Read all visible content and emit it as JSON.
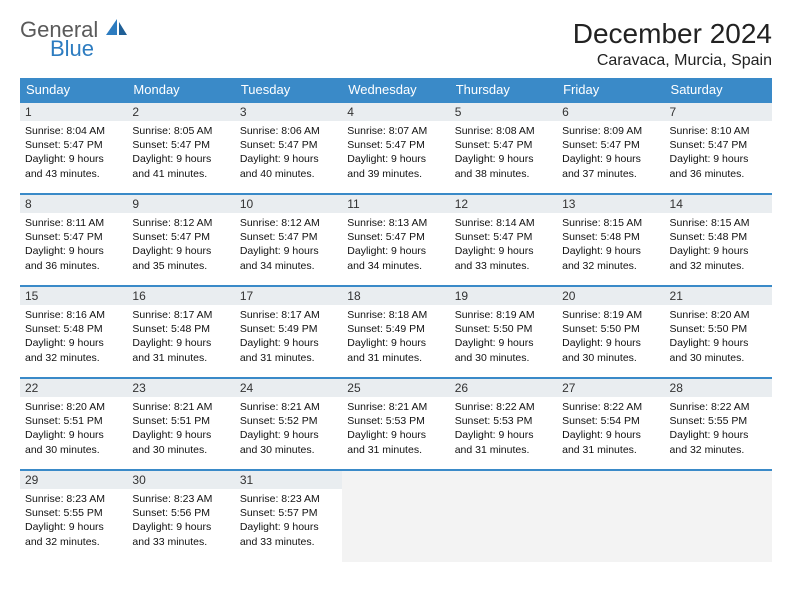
{
  "brand": {
    "general": "General",
    "blue": "Blue"
  },
  "title": "December 2024",
  "location": "Caravaca, Murcia, Spain",
  "colors": {
    "header_bg": "#3a8ac8",
    "header_text": "#ffffff",
    "daynum_bg": "#e9edf0",
    "row_border": "#3a8ac8",
    "logo_gray": "#5a5a5a",
    "logo_blue": "#2d7cc0"
  },
  "weekdays": [
    "Sunday",
    "Monday",
    "Tuesday",
    "Wednesday",
    "Thursday",
    "Friday",
    "Saturday"
  ],
  "days": [
    {
      "n": "1",
      "sr": "8:04 AM",
      "ss": "5:47 PM",
      "dl": "9 hours and 43 minutes."
    },
    {
      "n": "2",
      "sr": "8:05 AM",
      "ss": "5:47 PM",
      "dl": "9 hours and 41 minutes."
    },
    {
      "n": "3",
      "sr": "8:06 AM",
      "ss": "5:47 PM",
      "dl": "9 hours and 40 minutes."
    },
    {
      "n": "4",
      "sr": "8:07 AM",
      "ss": "5:47 PM",
      "dl": "9 hours and 39 minutes."
    },
    {
      "n": "5",
      "sr": "8:08 AM",
      "ss": "5:47 PM",
      "dl": "9 hours and 38 minutes."
    },
    {
      "n": "6",
      "sr": "8:09 AM",
      "ss": "5:47 PM",
      "dl": "9 hours and 37 minutes."
    },
    {
      "n": "7",
      "sr": "8:10 AM",
      "ss": "5:47 PM",
      "dl": "9 hours and 36 minutes."
    },
    {
      "n": "8",
      "sr": "8:11 AM",
      "ss": "5:47 PM",
      "dl": "9 hours and 36 minutes."
    },
    {
      "n": "9",
      "sr": "8:12 AM",
      "ss": "5:47 PM",
      "dl": "9 hours and 35 minutes."
    },
    {
      "n": "10",
      "sr": "8:12 AM",
      "ss": "5:47 PM",
      "dl": "9 hours and 34 minutes."
    },
    {
      "n": "11",
      "sr": "8:13 AM",
      "ss": "5:47 PM",
      "dl": "9 hours and 34 minutes."
    },
    {
      "n": "12",
      "sr": "8:14 AM",
      "ss": "5:47 PM",
      "dl": "9 hours and 33 minutes."
    },
    {
      "n": "13",
      "sr": "8:15 AM",
      "ss": "5:48 PM",
      "dl": "9 hours and 32 minutes."
    },
    {
      "n": "14",
      "sr": "8:15 AM",
      "ss": "5:48 PM",
      "dl": "9 hours and 32 minutes."
    },
    {
      "n": "15",
      "sr": "8:16 AM",
      "ss": "5:48 PM",
      "dl": "9 hours and 32 minutes."
    },
    {
      "n": "16",
      "sr": "8:17 AM",
      "ss": "5:48 PM",
      "dl": "9 hours and 31 minutes."
    },
    {
      "n": "17",
      "sr": "8:17 AM",
      "ss": "5:49 PM",
      "dl": "9 hours and 31 minutes."
    },
    {
      "n": "18",
      "sr": "8:18 AM",
      "ss": "5:49 PM",
      "dl": "9 hours and 31 minutes."
    },
    {
      "n": "19",
      "sr": "8:19 AM",
      "ss": "5:50 PM",
      "dl": "9 hours and 30 minutes."
    },
    {
      "n": "20",
      "sr": "8:19 AM",
      "ss": "5:50 PM",
      "dl": "9 hours and 30 minutes."
    },
    {
      "n": "21",
      "sr": "8:20 AM",
      "ss": "5:50 PM",
      "dl": "9 hours and 30 minutes."
    },
    {
      "n": "22",
      "sr": "8:20 AM",
      "ss": "5:51 PM",
      "dl": "9 hours and 30 minutes."
    },
    {
      "n": "23",
      "sr": "8:21 AM",
      "ss": "5:51 PM",
      "dl": "9 hours and 30 minutes."
    },
    {
      "n": "24",
      "sr": "8:21 AM",
      "ss": "5:52 PM",
      "dl": "9 hours and 30 minutes."
    },
    {
      "n": "25",
      "sr": "8:21 AM",
      "ss": "5:53 PM",
      "dl": "9 hours and 31 minutes."
    },
    {
      "n": "26",
      "sr": "8:22 AM",
      "ss": "5:53 PM",
      "dl": "9 hours and 31 minutes."
    },
    {
      "n": "27",
      "sr": "8:22 AM",
      "ss": "5:54 PM",
      "dl": "9 hours and 31 minutes."
    },
    {
      "n": "28",
      "sr": "8:22 AM",
      "ss": "5:55 PM",
      "dl": "9 hours and 32 minutes."
    },
    {
      "n": "29",
      "sr": "8:23 AM",
      "ss": "5:55 PM",
      "dl": "9 hours and 32 minutes."
    },
    {
      "n": "30",
      "sr": "8:23 AM",
      "ss": "5:56 PM",
      "dl": "9 hours and 33 minutes."
    },
    {
      "n": "31",
      "sr": "8:23 AM",
      "ss": "5:57 PM",
      "dl": "9 hours and 33 minutes."
    }
  ],
  "labels": {
    "sunrise": "Sunrise:",
    "sunset": "Sunset:",
    "daylight": "Daylight:"
  },
  "layout": {
    "start_offset": 0,
    "total_cells": 35
  }
}
